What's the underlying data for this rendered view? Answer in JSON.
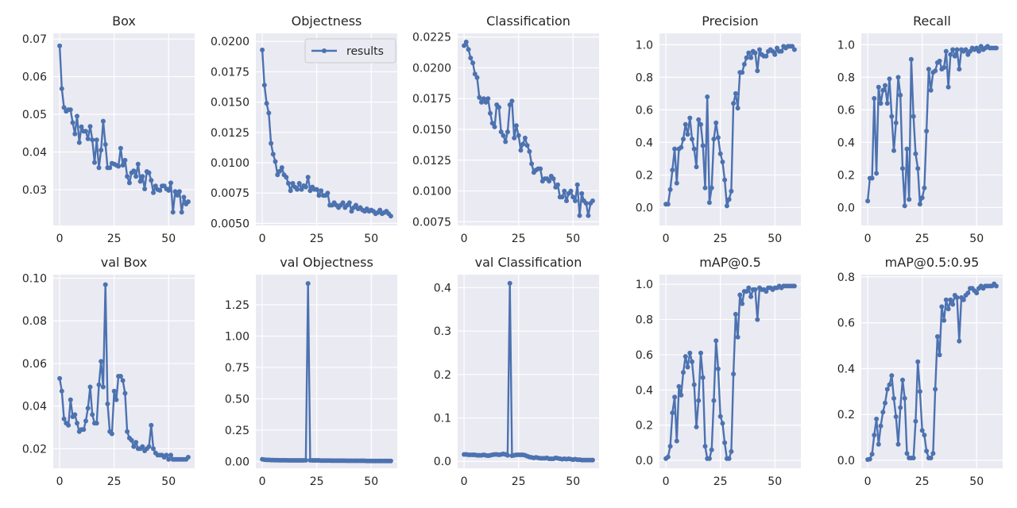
{
  "chart_data": [
    {
      "type": "line",
      "title": "Box",
      "xlabel": "",
      "ylabel": "",
      "xlim": [
        -2.95,
        61.95
      ],
      "ylim": [
        0.0205,
        0.0715
      ],
      "xticks": [
        0,
        25,
        50
      ],
      "xtick_labels": [
        "0",
        "25",
        "50"
      ],
      "yticks": [
        0.03,
        0.04,
        0.05,
        0.06,
        0.07
      ],
      "ytick_labels": [
        "0.03",
        "0.04",
        "0.05",
        "0.06",
        "0.07"
      ],
      "series": [
        {
          "name": "results",
          "color": "#4c72b0",
          "values": [
            0.0682,
            0.0568,
            0.0518,
            0.0508,
            0.0512,
            0.0512,
            0.0478,
            0.0448,
            0.0495,
            0.0425,
            0.0467,
            0.0455,
            0.0455,
            0.0435,
            0.0468,
            0.0432,
            0.0372,
            0.0432,
            0.0358,
            0.0405,
            0.0482,
            0.042,
            0.0358,
            0.0358,
            0.037,
            0.0368,
            0.0365,
            0.0362,
            0.041,
            0.0365,
            0.0378,
            0.0335,
            0.0318,
            0.0345,
            0.035,
            0.0335,
            0.0368,
            0.0322,
            0.0335,
            0.0302,
            0.0348,
            0.0345,
            0.0325,
            0.0292,
            0.031,
            0.03,
            0.0298,
            0.031,
            0.031,
            0.0302,
            0.0298,
            0.0318,
            0.024,
            0.0295,
            0.0285,
            0.0295,
            0.024,
            0.028,
            0.0262,
            0.0268
          ]
        }
      ]
    },
    {
      "type": "line",
      "title": "Objectness",
      "xlabel": "",
      "ylabel": "",
      "xlim": [
        -2.95,
        61.95
      ],
      "ylim": [
        0.00483,
        0.02067
      ],
      "xticks": [
        0,
        25,
        50
      ],
      "xtick_labels": [
        "0",
        "25",
        "50"
      ],
      "yticks": [
        0.005,
        0.0075,
        0.01,
        0.0125,
        0.015,
        0.0175,
        0.02
      ],
      "ytick_labels": [
        "0.0050",
        "0.0075",
        "0.0100",
        "0.0125",
        "0.0150",
        "0.0175",
        "0.0200"
      ],
      "legend": {
        "label": "results",
        "position": "top-right"
      },
      "series": [
        {
          "name": "results",
          "color": "#4c72b0",
          "values": [
            0.0193,
            0.0164,
            0.0149,
            0.0141,
            0.0116,
            0.0107,
            0.0101,
            0.009,
            0.0093,
            0.0096,
            0.009,
            0.0088,
            0.0083,
            0.0077,
            0.0083,
            0.008,
            0.0078,
            0.0083,
            0.0078,
            0.0081,
            0.008,
            0.0088,
            0.0077,
            0.008,
            0.0078,
            0.0078,
            0.0073,
            0.0077,
            0.0073,
            0.0073,
            0.0075,
            0.0065,
            0.0065,
            0.0067,
            0.0065,
            0.0063,
            0.0065,
            0.0067,
            0.0063,
            0.0065,
            0.0067,
            0.006,
            0.0063,
            0.0065,
            0.0062,
            0.0063,
            0.0061,
            0.006,
            0.0062,
            0.006,
            0.0061,
            0.006,
            0.0058,
            0.0059,
            0.0061,
            0.0058,
            0.0059,
            0.006,
            0.0058,
            0.0056
          ]
        }
      ]
    },
    {
      "type": "line",
      "title": "Classification",
      "xlabel": "",
      "ylabel": "",
      "xlim": [
        -2.95,
        61.95
      ],
      "ylim": [
        0.0072,
        0.0228
      ],
      "xticks": [
        0,
        25,
        50
      ],
      "xtick_labels": [
        "0",
        "25",
        "50"
      ],
      "yticks": [
        0.0075,
        0.01,
        0.0125,
        0.015,
        0.0175,
        0.02,
        0.0225
      ],
      "ytick_labels": [
        "0.0075",
        "0.0100",
        "0.0125",
        "0.0150",
        "0.0175",
        "0.0200",
        "0.0225"
      ],
      "series": [
        {
          "name": "results",
          "color": "#4c72b0",
          "values": [
            0.0218,
            0.0221,
            0.0215,
            0.0208,
            0.0204,
            0.0195,
            0.0192,
            0.0176,
            0.0172,
            0.0175,
            0.0172,
            0.0175,
            0.0163,
            0.0155,
            0.0152,
            0.017,
            0.0168,
            0.0148,
            0.0145,
            0.014,
            0.0148,
            0.017,
            0.0173,
            0.0143,
            0.0153,
            0.0145,
            0.0133,
            0.0138,
            0.0143,
            0.0137,
            0.0132,
            0.0122,
            0.0115,
            0.0117,
            0.0118,
            0.0118,
            0.0108,
            0.011,
            0.011,
            0.0108,
            0.0112,
            0.011,
            0.0103,
            0.0105,
            0.0095,
            0.0095,
            0.01,
            0.0092,
            0.0098,
            0.01,
            0.0095,
            0.0092,
            0.0105,
            0.008,
            0.0098,
            0.0092,
            0.009,
            0.008,
            0.009,
            0.0092
          ]
        }
      ]
    },
    {
      "type": "line",
      "title": "Precision",
      "xlabel": "",
      "ylabel": "",
      "xlim": [
        -2.95,
        61.95
      ],
      "ylim": [
        -0.11,
        1.07
      ],
      "xticks": [
        0,
        25,
        50
      ],
      "xtick_labels": [
        "0",
        "25",
        "50"
      ],
      "yticks": [
        0,
        0.2,
        0.4,
        0.6,
        0.8,
        1.0
      ],
      "ytick_labels": [
        "0.0",
        "0.2",
        "0.4",
        "0.6",
        "0.8",
        "1.0"
      ],
      "series": [
        {
          "name": "results",
          "color": "#4c72b0",
          "values": [
            0.02,
            0.02,
            0.11,
            0.23,
            0.36,
            0.15,
            0.36,
            0.37,
            0.42,
            0.51,
            0.45,
            0.55,
            0.42,
            0.36,
            0.25,
            0.54,
            0.51,
            0.38,
            0.12,
            0.68,
            0.03,
            0.12,
            0.42,
            0.52,
            0.43,
            0.33,
            0.28,
            0.17,
            0.01,
            0.05,
            0.1,
            0.64,
            0.7,
            0.61,
            0.83,
            0.83,
            0.88,
            0.92,
            0.95,
            0.92,
            0.96,
            0.95,
            0.84,
            0.97,
            0.94,
            0.93,
            0.93,
            0.96,
            0.97,
            0.96,
            0.94,
            0.98,
            0.96,
            0.96,
            0.99,
            0.98,
            0.99,
            0.99,
            0.99,
            0.97
          ]
        }
      ]
    },
    {
      "type": "line",
      "title": "Recall",
      "xlabel": "",
      "ylabel": "",
      "xlim": [
        -2.95,
        61.95
      ],
      "ylim": [
        -0.11,
        1.07
      ],
      "xticks": [
        0,
        25,
        50
      ],
      "xtick_labels": [
        "0",
        "25",
        "50"
      ],
      "yticks": [
        0,
        0.2,
        0.4,
        0.6,
        0.8,
        1.0
      ],
      "ytick_labels": [
        "0.0",
        "0.2",
        "0.4",
        "0.6",
        "0.8",
        "1.0"
      ],
      "series": [
        {
          "name": "results",
          "color": "#4c72b0",
          "values": [
            0.04,
            0.18,
            0.18,
            0.67,
            0.21,
            0.74,
            0.64,
            0.72,
            0.75,
            0.64,
            0.79,
            0.56,
            0.35,
            0.52,
            0.8,
            0.69,
            0.24,
            0.01,
            0.36,
            0.05,
            0.91,
            0.56,
            0.33,
            0.24,
            0.02,
            0.06,
            0.12,
            0.47,
            0.85,
            0.72,
            0.83,
            0.84,
            0.89,
            0.9,
            0.85,
            0.86,
            0.96,
            0.74,
            0.94,
            0.97,
            0.93,
            0.97,
            0.85,
            0.97,
            0.96,
            0.97,
            0.94,
            0.96,
            0.98,
            0.97,
            0.98,
            0.96,
            0.99,
            0.97,
            0.98,
            0.99,
            0.98,
            0.98,
            0.98,
            0.98
          ]
        }
      ]
    },
    {
      "type": "line",
      "title": "val Box",
      "xlabel": "",
      "ylabel": "",
      "xlim": [
        -2.95,
        61.95
      ],
      "ylim": [
        0.0108,
        0.1017
      ],
      "xticks": [
        0,
        25,
        50
      ],
      "xtick_labels": [
        "0",
        "25",
        "50"
      ],
      "yticks": [
        0.02,
        0.04,
        0.06,
        0.08,
        0.1
      ],
      "ytick_labels": [
        "0.02",
        "0.04",
        "0.06",
        "0.08",
        "0.10"
      ],
      "series": [
        {
          "name": "results",
          "color": "#4c72b0",
          "values": [
            0.053,
            0.047,
            0.034,
            0.032,
            0.031,
            0.043,
            0.035,
            0.036,
            0.032,
            0.028,
            0.029,
            0.029,
            0.033,
            0.039,
            0.049,
            0.036,
            0.032,
            0.032,
            0.05,
            0.061,
            0.049,
            0.097,
            0.041,
            0.028,
            0.027,
            0.047,
            0.043,
            0.054,
            0.054,
            0.052,
            0.046,
            0.028,
            0.025,
            0.024,
            0.021,
            0.023,
            0.02,
            0.02,
            0.021,
            0.019,
            0.02,
            0.021,
            0.031,
            0.02,
            0.018,
            0.017,
            0.017,
            0.017,
            0.016,
            0.017,
            0.015,
            0.017,
            0.015,
            0.015,
            0.015,
            0.015,
            0.015,
            0.015,
            0.015,
            0.016
          ]
        }
      ]
    },
    {
      "type": "line",
      "title": "val Objectness",
      "xlabel": "",
      "ylabel": "",
      "xlim": [
        -2.95,
        61.95
      ],
      "ylim": [
        -0.054,
        1.49
      ],
      "xticks": [
        0,
        25,
        50
      ],
      "xtick_labels": [
        "0",
        "25",
        "50"
      ],
      "yticks": [
        0,
        0.25,
        0.5,
        0.75,
        1.0,
        1.25
      ],
      "ytick_labels": [
        "0.00",
        "0.25",
        "0.50",
        "0.75",
        "1.00",
        "1.25"
      ],
      "series": [
        {
          "name": "results",
          "color": "#4c72b0",
          "values": [
            0.018,
            0.015,
            0.013,
            0.013,
            0.012,
            0.012,
            0.011,
            0.011,
            0.01,
            0.01,
            0.01,
            0.01,
            0.009,
            0.009,
            0.009,
            0.009,
            0.009,
            0.009,
            0.009,
            0.009,
            0.01,
            1.42,
            0.01,
            0.009,
            0.009,
            0.009,
            0.009,
            0.008,
            0.008,
            0.008,
            0.008,
            0.008,
            0.007,
            0.007,
            0.007,
            0.007,
            0.007,
            0.007,
            0.007,
            0.006,
            0.006,
            0.006,
            0.006,
            0.006,
            0.006,
            0.006,
            0.006,
            0.006,
            0.005,
            0.005,
            0.005,
            0.005,
            0.005,
            0.005,
            0.005,
            0.005,
            0.005,
            0.005,
            0.005,
            0.005
          ]
        }
      ]
    },
    {
      "type": "line",
      "title": "val Classification",
      "xlabel": "",
      "ylabel": "",
      "xlim": [
        -2.95,
        61.95
      ],
      "ylim": [
        -0.016,
        0.43
      ],
      "xticks": [
        0,
        25,
        50
      ],
      "xtick_labels": [
        "0",
        "25",
        "50"
      ],
      "yticks": [
        0,
        0.1,
        0.2,
        0.3,
        0.4
      ],
      "ytick_labels": [
        "0.0",
        "0.1",
        "0.2",
        "0.3",
        "0.4"
      ],
      "series": [
        {
          "name": "results",
          "color": "#4c72b0",
          "values": [
            0.016,
            0.016,
            0.015,
            0.015,
            0.015,
            0.015,
            0.014,
            0.014,
            0.014,
            0.015,
            0.014,
            0.013,
            0.014,
            0.015,
            0.016,
            0.016,
            0.015,
            0.016,
            0.017,
            0.016,
            0.014,
            0.41,
            0.013,
            0.014,
            0.015,
            0.015,
            0.015,
            0.015,
            0.014,
            0.012,
            0.01,
            0.009,
            0.008,
            0.009,
            0.008,
            0.007,
            0.007,
            0.007,
            0.008,
            0.006,
            0.006,
            0.006,
            0.008,
            0.007,
            0.006,
            0.005,
            0.006,
            0.005,
            0.006,
            0.005,
            0.004,
            0.005,
            0.004,
            0.004,
            0.003,
            0.003,
            0.003,
            0.003,
            0.003,
            0.003
          ]
        }
      ]
    },
    {
      "type": "line",
      "title": "mAP@0.5",
      "xlabel": "",
      "ylabel": "",
      "xlim": [
        -2.95,
        61.95
      ],
      "ylim": [
        -0.045,
        1.055
      ],
      "xticks": [
        0,
        25,
        50
      ],
      "xtick_labels": [
        "0",
        "25",
        "50"
      ],
      "yticks": [
        0,
        0.2,
        0.4,
        0.6,
        0.8,
        1.0
      ],
      "ytick_labels": [
        "0.0",
        "0.2",
        "0.4",
        "0.6",
        "0.8",
        "1.0"
      ],
      "series": [
        {
          "name": "results",
          "color": "#4c72b0",
          "values": [
            0.01,
            0.02,
            0.08,
            0.27,
            0.36,
            0.11,
            0.42,
            0.37,
            0.5,
            0.59,
            0.53,
            0.61,
            0.56,
            0.43,
            0.19,
            0.34,
            0.61,
            0.47,
            0.08,
            0.01,
            0.01,
            0.06,
            0.34,
            0.68,
            0.52,
            0.25,
            0.21,
            0.1,
            0.01,
            0.01,
            0.05,
            0.49,
            0.83,
            0.7,
            0.94,
            0.89,
            0.96,
            0.96,
            0.98,
            0.93,
            0.97,
            0.97,
            0.8,
            0.98,
            0.97,
            0.97,
            0.96,
            0.98,
            0.98,
            0.97,
            0.98,
            0.98,
            0.99,
            0.98,
            0.99,
            0.99,
            0.99,
            0.99,
            0.99,
            0.99
          ]
        }
      ]
    },
    {
      "type": "line",
      "title": "mAP@0.5:0.95",
      "xlabel": "",
      "ylabel": "",
      "xlim": [
        -2.95,
        61.95
      ],
      "ylim": [
        -0.035,
        0.81
      ],
      "xticks": [
        0,
        25,
        50
      ],
      "xtick_labels": [
        "0",
        "25",
        "50"
      ],
      "yticks": [
        0,
        0.2,
        0.4,
        0.6,
        0.8
      ],
      "ytick_labels": [
        "0.0",
        "0.2",
        "0.4",
        "0.6",
        "0.8"
      ],
      "series": [
        {
          "name": "results",
          "color": "#4c72b0",
          "values": [
            0.003,
            0.005,
            0.027,
            0.11,
            0.18,
            0.07,
            0.15,
            0.21,
            0.25,
            0.31,
            0.33,
            0.37,
            0.27,
            0.19,
            0.07,
            0.23,
            0.35,
            0.27,
            0.03,
            0.01,
            0.01,
            0.01,
            0.17,
            0.43,
            0.3,
            0.13,
            0.11,
            0.04,
            0.01,
            0.01,
            0.03,
            0.31,
            0.54,
            0.46,
            0.67,
            0.61,
            0.7,
            0.66,
            0.7,
            0.68,
            0.72,
            0.71,
            0.52,
            0.71,
            0.7,
            0.72,
            0.73,
            0.75,
            0.75,
            0.74,
            0.73,
            0.75,
            0.76,
            0.75,
            0.76,
            0.76,
            0.76,
            0.76,
            0.77,
            0.76
          ]
        }
      ]
    }
  ]
}
